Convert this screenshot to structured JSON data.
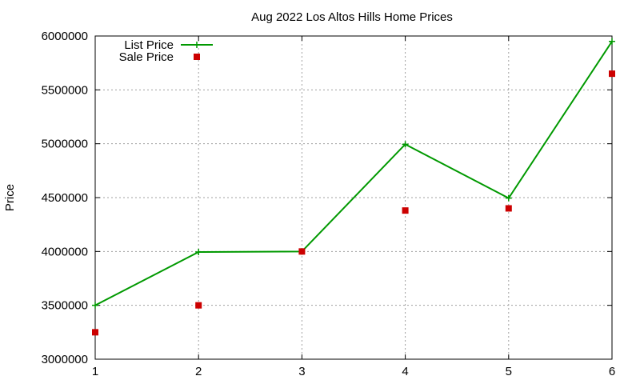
{
  "chart_data": {
    "type": "line",
    "title": "Aug 2022 Los Altos Hills Home Prices",
    "xlabel": "",
    "ylabel": "Price",
    "x": [
      1,
      2,
      3,
      4,
      5,
      6
    ],
    "xlim": [
      1,
      6
    ],
    "ylim": [
      3000000,
      6000000
    ],
    "xticks": [
      "1",
      "2",
      "3",
      "4",
      "5",
      "6"
    ],
    "yticks": [
      "3000000",
      "3500000",
      "4000000",
      "4500000",
      "5000000",
      "5500000",
      "6000000"
    ],
    "grid": true,
    "legend_position": "top-left",
    "series": [
      {
        "name": "List Price",
        "style": "line+cross",
        "color": "#009900",
        "values": [
          3500000,
          3995000,
          4000000,
          4995000,
          4495000,
          5950000
        ]
      },
      {
        "name": "Sale Price",
        "style": "square-markers",
        "color": "#cc0000",
        "values": [
          3250000,
          3500000,
          4000000,
          4380000,
          4400000,
          5650000
        ]
      }
    ]
  }
}
